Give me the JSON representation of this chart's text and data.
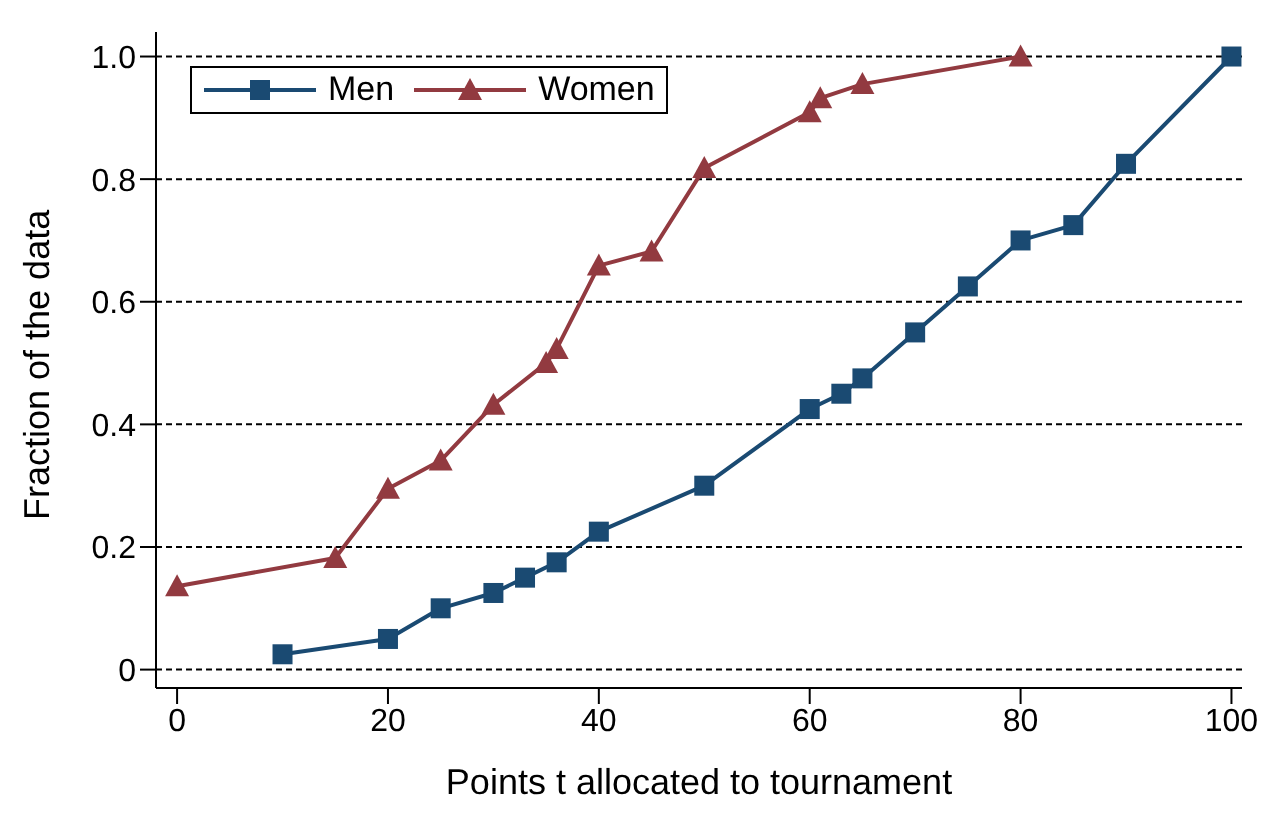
{
  "chart_data": {
    "type": "line",
    "xlabel": "Points t allocated to tournament",
    "ylabel": "Fraction of the data",
    "xlim": [
      -2,
      101
    ],
    "xticks": [
      0,
      20,
      40,
      60,
      80,
      100
    ],
    "ylim": [
      -0.03,
      1.04
    ],
    "yticks": [
      0,
      0.2,
      0.4,
      0.6,
      0.8,
      {
        "value": 1,
        "label": "1.0"
      }
    ],
    "grid": "y",
    "legend": "top left",
    "series": [
      {
        "name": "Men",
        "color": "#1a4a72",
        "marker": "square",
        "x": [
          10,
          20,
          25,
          30,
          33,
          36,
          40,
          50,
          60,
          63,
          65,
          70,
          75,
          80,
          85,
          90,
          100
        ],
        "values": [
          0.025,
          0.05,
          0.1,
          0.125,
          0.15,
          0.175,
          0.225,
          0.3,
          0.425,
          0.45,
          0.475,
          0.55,
          0.625,
          0.7,
          0.725,
          0.825,
          1.0
        ]
      },
      {
        "name": "Women",
        "color": "#923a40",
        "marker": "triangle",
        "x": [
          0,
          15,
          20,
          25,
          30,
          35,
          36,
          40,
          45,
          50,
          60,
          61,
          65,
          80
        ],
        "values": [
          0.136,
          0.182,
          0.295,
          0.341,
          0.432,
          0.5,
          0.523,
          0.659,
          0.682,
          0.818,
          0.909,
          0.932,
          0.955,
          1.0
        ]
      }
    ]
  }
}
